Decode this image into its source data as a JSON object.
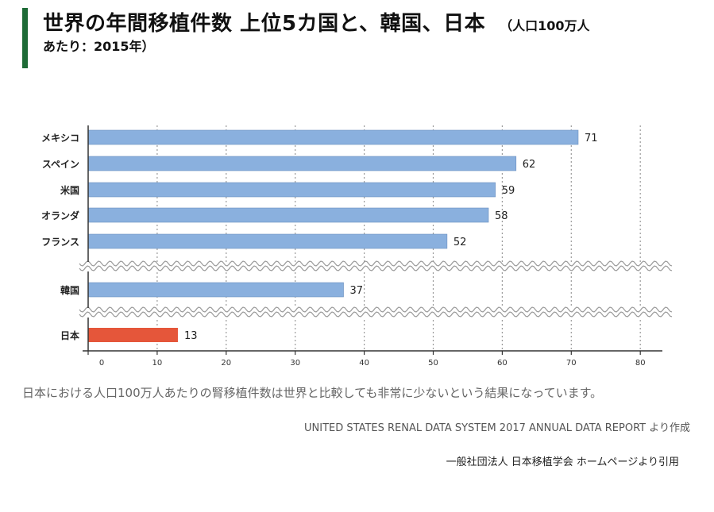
{
  "header": {
    "title": "世界の年間移植件数 上位5カ国と、韓国、日本",
    "unit_part1": "（人口100万人",
    "unit_part2": "あたり：2015年）"
  },
  "chart_data": {
    "type": "bar",
    "orientation": "horizontal",
    "categories": [
      "メキシコ",
      "スペイン",
      "米国",
      "オランダ",
      "フランス",
      "韓国",
      "日本"
    ],
    "values": [
      71,
      62,
      59,
      58,
      52,
      37,
      13
    ],
    "colors": [
      "#8ab0de",
      "#8ab0de",
      "#8ab0de",
      "#8ab0de",
      "#8ab0de",
      "#8ab0de",
      "#e5563a"
    ],
    "xlim": [
      0,
      80
    ],
    "xticks": [
      0,
      10,
      20,
      30,
      40,
      50,
      60,
      70,
      80
    ],
    "grid": "vertical dotted",
    "axis_break": "wavy break lines between フランス and 韓国, and between 韓国 and 日本"
  },
  "caption": "日本における人口100万人あたりの腎移植件数は世界と比較しても非常に少ないという結果になっています。",
  "source": "UNITED STATES RENAL DATA SYSTEM 2017 ANNUAL DATA REPORT より作成",
  "credit": "一般社団法人 日本移植学会 ホームページより引用"
}
